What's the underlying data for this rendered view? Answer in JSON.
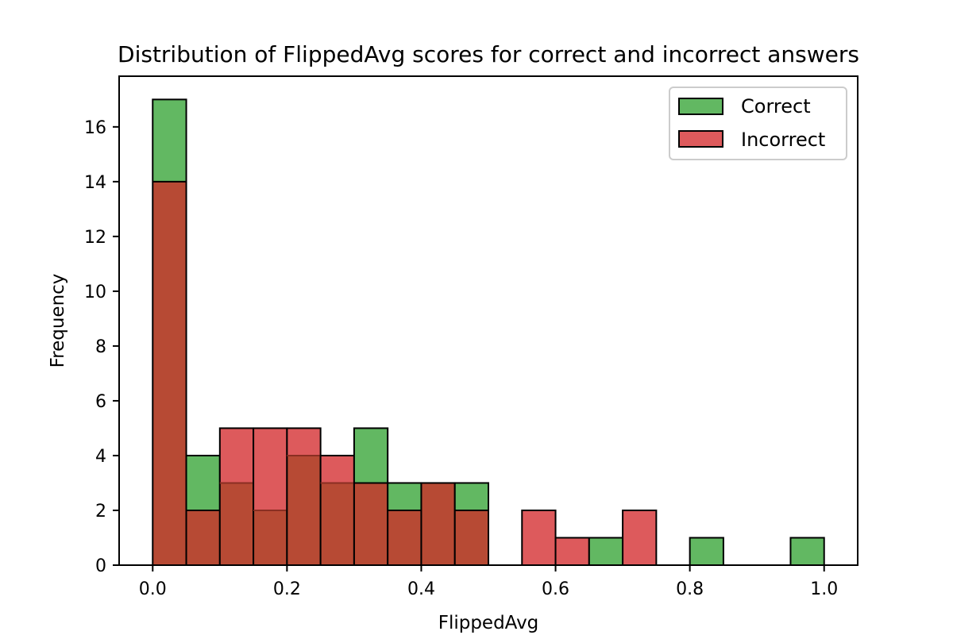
{
  "chart_data": {
    "type": "bar",
    "title": "Distribution of FlippedAvg scores for correct and incorrect answers",
    "xlabel": "FlippedAvg",
    "ylabel": "Frequency",
    "xlim": [
      -0.05,
      1.05
    ],
    "ylim": [
      0,
      17.85
    ],
    "xticks": [
      0.0,
      0.2,
      0.4,
      0.6,
      0.8,
      1.0
    ],
    "xtick_labels": [
      "0.0",
      "0.2",
      "0.4",
      "0.6",
      "0.8",
      "1.0"
    ],
    "yticks": [
      0,
      2,
      4,
      6,
      8,
      10,
      12,
      14,
      16
    ],
    "ytick_labels": [
      "0",
      "2",
      "4",
      "6",
      "8",
      "10",
      "12",
      "14",
      "16"
    ],
    "bin_edges": [
      0.0,
      0.05,
      0.1,
      0.15,
      0.2,
      0.25,
      0.3,
      0.35,
      0.4,
      0.45,
      0.5,
      0.55,
      0.6,
      0.65,
      0.7,
      0.75,
      0.8,
      0.85,
      0.9,
      0.95,
      1.0
    ],
    "series": [
      {
        "name": "Correct",
        "color": "#62b862",
        "values": [
          17,
          4,
          3,
          2,
          4,
          3,
          5,
          3,
          3,
          3,
          0,
          0,
          0,
          1,
          0,
          0,
          1,
          0,
          0,
          1
        ]
      },
      {
        "name": "Incorrect",
        "color": "#dd5a5c",
        "values": [
          14,
          2,
          5,
          5,
          5,
          4,
          3,
          2,
          3,
          2,
          0,
          2,
          1,
          0,
          2,
          0,
          0,
          0,
          0,
          0
        ]
      }
    ],
    "overlap_color": "#b74a34",
    "legend_position": "upper right",
    "grid": false
  }
}
